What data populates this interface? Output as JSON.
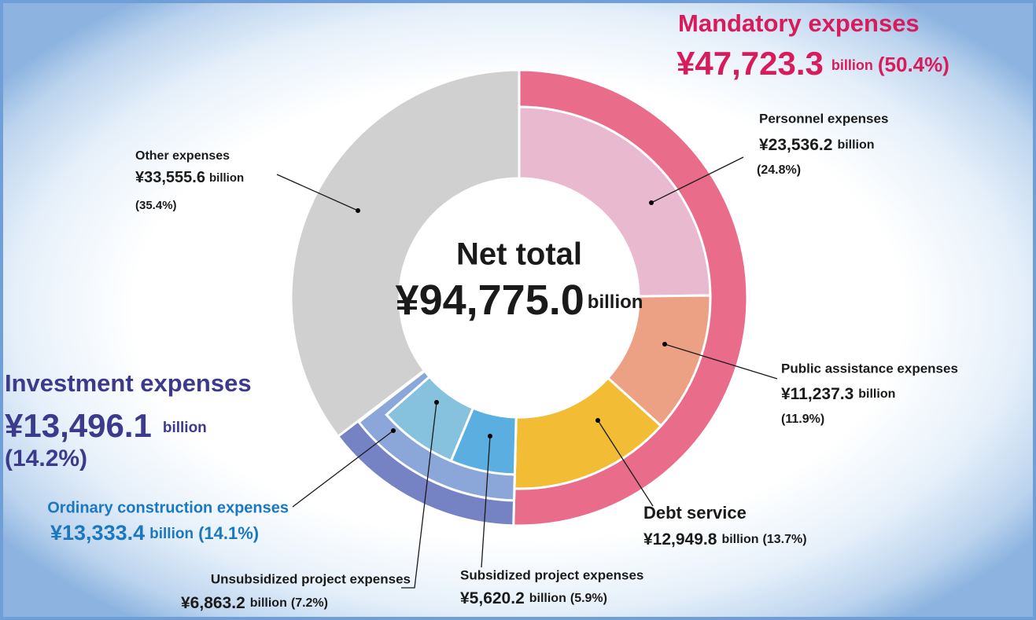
{
  "chart_data": {
    "type": "donut",
    "center_title": "Net total",
    "total": 94775.0,
    "total_label": "¥94,775.0",
    "unit": "billion",
    "segments": [
      {
        "name": "Mandatory expenses",
        "amount": 47723.3,
        "amount_label": "¥47,723.3",
        "share": 50.4,
        "share_label": "(50.4%)",
        "color": "#e96d8a",
        "children": [
          {
            "name": "Personnel expenses",
            "amount": 23536.2,
            "amount_label": "¥23,536.2",
            "share": 24.8,
            "share_label": "(24.8%)",
            "color": "#e8b9cf"
          },
          {
            "name": "Public assistance expenses",
            "amount": 11237.3,
            "amount_label": "¥11,237.3",
            "share": 11.9,
            "share_label": "(11.9%)",
            "color": "#eca184"
          },
          {
            "name": "Debt service",
            "amount": 12949.8,
            "amount_label": "¥12,949.8",
            "share": 13.7,
            "share_label": "(13.7%)",
            "color": "#f2bd35"
          }
        ]
      },
      {
        "name": "Investment expenses",
        "amount": 13496.1,
        "amount_label": "¥13,496.1",
        "share": 14.2,
        "share_label": "(14.2%)",
        "color": "#7583c4",
        "children": [
          {
            "name": "Ordinary construction expenses",
            "amount": 13333.4,
            "amount_label": "¥13,333.4",
            "share": 14.1,
            "share_label": "(14.1%)",
            "color": "#8ba6d8",
            "children": [
              {
                "name": "Subsidized project expenses",
                "amount": 5620.2,
                "amount_label": "¥5,620.2",
                "share": 5.9,
                "share_label": "(5.9%)",
                "color": "#5baee0"
              },
              {
                "name": "Unsubsidized project expenses",
                "amount": 6863.2,
                "amount_label": "¥6,863.2",
                "share": 7.2,
                "share_label": "(7.2%)",
                "color": "#86c2de"
              }
            ]
          }
        ]
      },
      {
        "name": "Other expenses",
        "amount": 33555.6,
        "amount_label": "¥33,555.6",
        "share": 35.4,
        "share_label": "(35.4%)",
        "color": "#d0d0d0"
      }
    ]
  }
}
